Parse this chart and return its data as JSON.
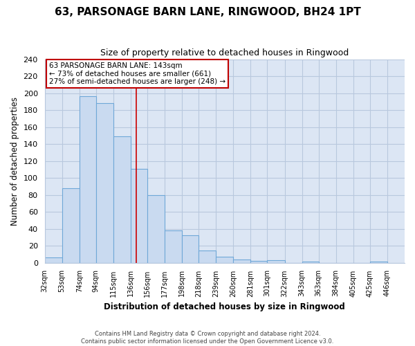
{
  "title": "63, PARSONAGE BARN LANE, RINGWOOD, BH24 1PT",
  "subtitle": "Size of property relative to detached houses in Ringwood",
  "xlabel": "Distribution of detached houses by size in Ringwood",
  "ylabel": "Number of detached properties",
  "bin_labels": [
    "32sqm",
    "53sqm",
    "74sqm",
    "94sqm",
    "115sqm",
    "136sqm",
    "156sqm",
    "177sqm",
    "198sqm",
    "218sqm",
    "239sqm",
    "260sqm",
    "281sqm",
    "301sqm",
    "322sqm",
    "343sqm",
    "363sqm",
    "384sqm",
    "405sqm",
    "425sqm",
    "446sqm"
  ],
  "bar_heights": [
    6,
    88,
    196,
    188,
    149,
    111,
    80,
    38,
    32,
    14,
    7,
    4,
    2,
    3,
    0,
    1,
    0,
    0,
    0,
    1
  ],
  "bar_color": "#c9daf0",
  "bar_edge_color": "#6fa8d8",
  "vline_x": 143,
  "bin_edges": [
    32,
    53,
    74,
    94,
    115,
    136,
    156,
    177,
    198,
    218,
    239,
    260,
    281,
    301,
    322,
    343,
    363,
    384,
    405,
    425,
    446
  ],
  "annotation_title": "63 PARSONAGE BARN LANE: 143sqm",
  "annotation_line1": "← 73% of detached houses are smaller (661)",
  "annotation_line2": "27% of semi-detached houses are larger (248) →",
  "annotation_box_facecolor": "#ffffff",
  "annotation_box_edgecolor": "#c00000",
  "ylim": [
    0,
    240
  ],
  "yticks": [
    0,
    20,
    40,
    60,
    80,
    100,
    120,
    140,
    160,
    180,
    200,
    220,
    240
  ],
  "footer_line1": "Contains HM Land Registry data © Crown copyright and database right 2024.",
  "footer_line2": "Contains public sector information licensed under the Open Government Licence v3.0.",
  "plot_bg_color": "#dce6f4",
  "fig_bg_color": "#ffffff",
  "grid_color": "#b8c8de"
}
